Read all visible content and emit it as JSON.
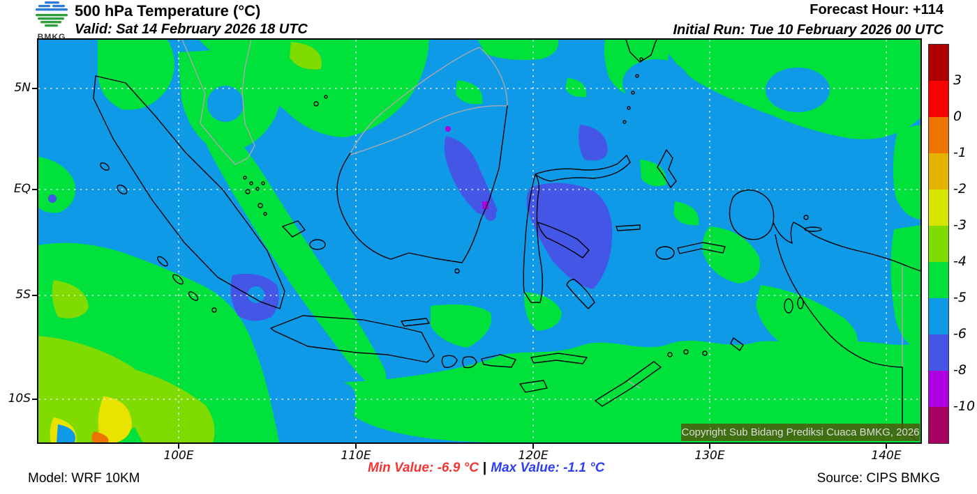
{
  "header": {
    "logo_label": "BMKG",
    "title": "500 hPa Temperature (°C)",
    "valid": "Valid: Sat 14 February 2026 18 UTC",
    "forecast_hour": "Forecast Hour: +114",
    "initial_run": "Initial Run: Tue 10 February 2026 00 UTC"
  },
  "map": {
    "copyright": "Copyright Sub Bidang Prediksi Cuaca BMKG, 2026",
    "lat_labels": [
      "5N",
      "EQ",
      "5S",
      "10S"
    ],
    "lon_labels": [
      "100E",
      "110E",
      "120E",
      "130E",
      "140E"
    ]
  },
  "colorbar": {
    "tick_labels": [
      "3",
      "0",
      "-1",
      "-2",
      "-3",
      "-4",
      "-5",
      "-6",
      "-8",
      "-10"
    ],
    "colors": [
      "#AE0000",
      "#FA0000",
      "#EE7400",
      "#E6B200",
      "#D6E400",
      "#80DC00",
      "#00E13C",
      "#0F9AE8",
      "#4456E6",
      "#AE00E0",
      "#A60060"
    ]
  },
  "palette": {
    "lightblue": "#0F9AE8",
    "green": "#00E13C",
    "chartreuse": "#80DC00",
    "yellow": "#E8E400",
    "orange": "#EE7400",
    "royalblue": "#4456E6",
    "purple": "#AE00E0",
    "gridline": "#E9E9E9",
    "coast": "#000000",
    "border": "#A9A9A9"
  },
  "footer": {
    "model": "Model: WRF 10KM",
    "min_value": "Min Value: -6.9 °C",
    "separator": "|",
    "max_value": "Max Value: -1.1 °C",
    "source": "Source: CIPS BMKG"
  }
}
